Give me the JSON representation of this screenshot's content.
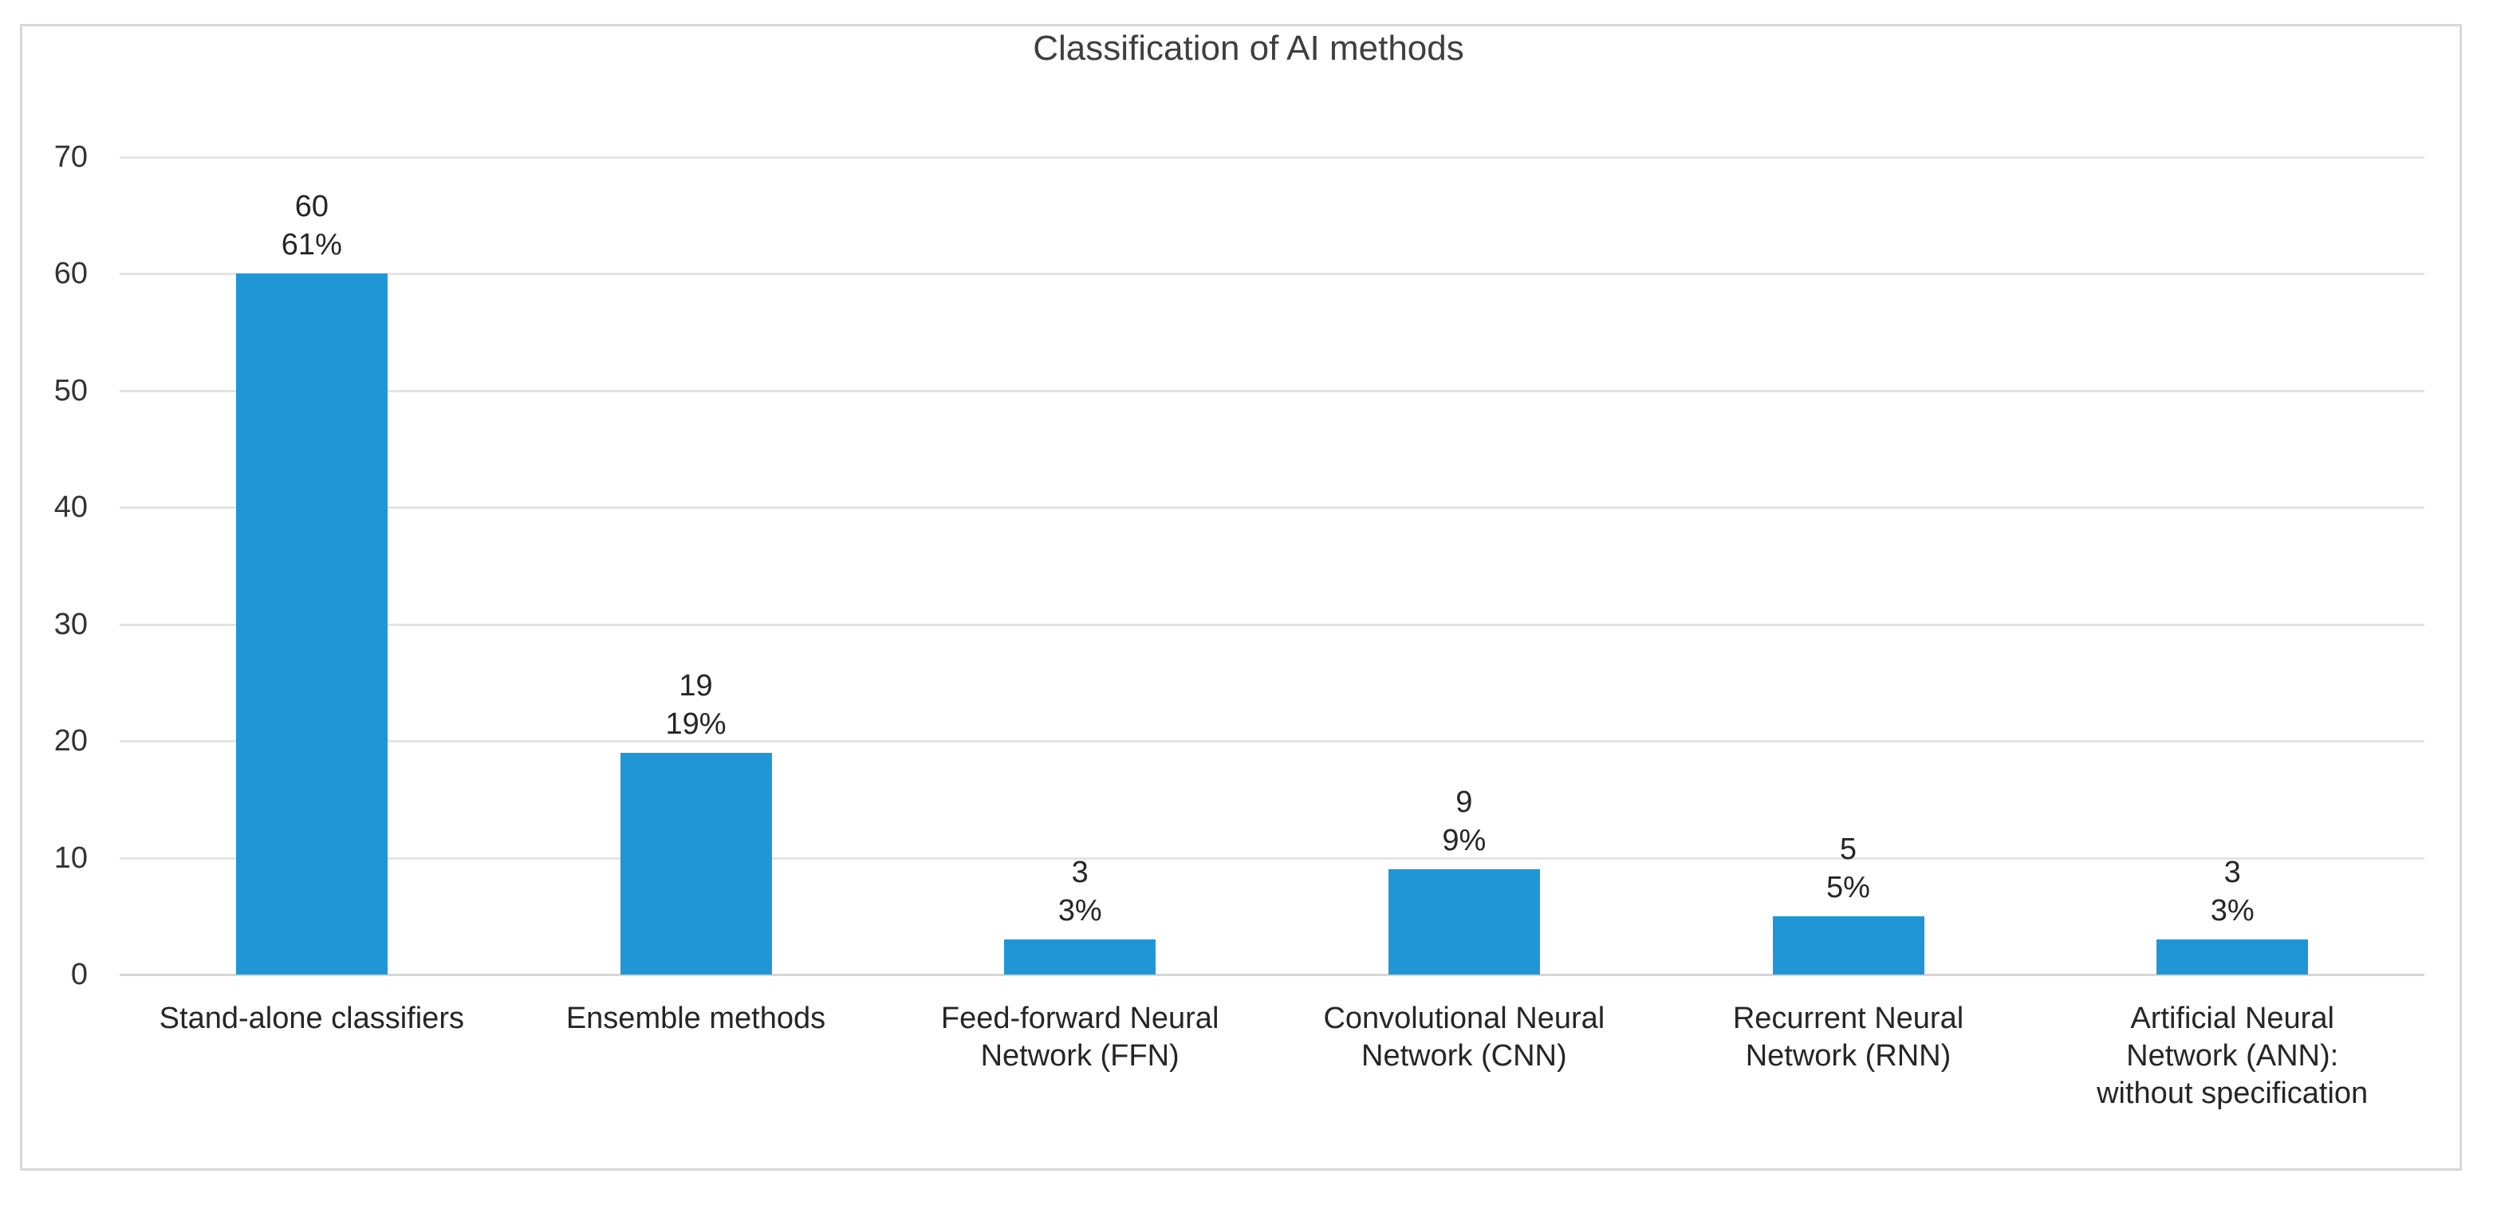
{
  "title": "Classification of AI methods",
  "chart_data": {
    "type": "bar",
    "title": "Classification of AI methods",
    "categories": [
      "Stand-alone classifiers",
      "Ensemble methods",
      "Feed-forward Neural Network (FFN)",
      "Convolutional Neural Network (CNN)",
      "Recurrent Neural Network (RNN)",
      "Artificial Neural Network (ANN): without specification"
    ],
    "category_lines": [
      [
        "Stand-alone classifiers"
      ],
      [
        "Ensemble methods"
      ],
      [
        "Feed-forward Neural",
        "Network (FFN)"
      ],
      [
        "Convolutional Neural",
        "Network (CNN)"
      ],
      [
        "Recurrent Neural",
        "Network (RNN)"
      ],
      [
        "Artificial Neural",
        "Network (ANN):",
        "without specification"
      ]
    ],
    "values": [
      60,
      19,
      3,
      9,
      5,
      3
    ],
    "data_labels": [
      [
        "60",
        "61%"
      ],
      [
        "19",
        "19%"
      ],
      [
        "3",
        "3%"
      ],
      [
        "9",
        "9%"
      ],
      [
        "5",
        "5%"
      ],
      [
        "3",
        "3%"
      ]
    ],
    "xlabel": "",
    "ylabel": "",
    "ylim": [
      0,
      70
    ],
    "yticks": [
      0,
      10,
      20,
      30,
      40,
      50,
      60,
      70
    ],
    "grid": "horizontal",
    "legend": "none",
    "colors": {
      "bar": "#2196d6",
      "gridline": "#e4e4e4",
      "axis_line": "#d5d5d5",
      "text": "#262626",
      "title_text": "#3f3f3f",
      "frame_border": "#d9d9d9",
      "background": "#ffffff"
    }
  }
}
